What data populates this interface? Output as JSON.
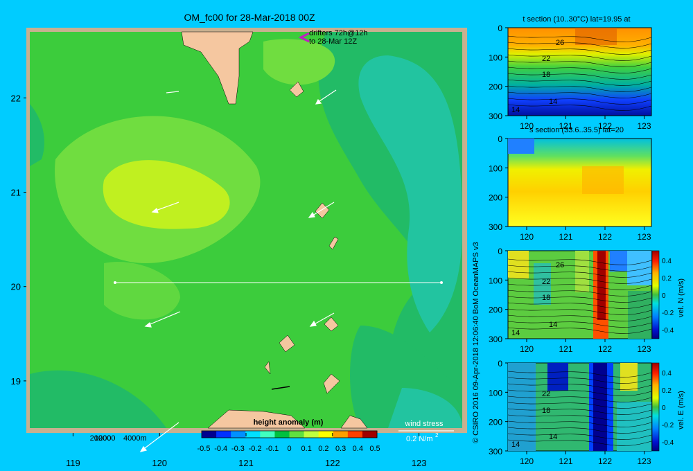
{
  "title": "OM_fc00 for 28-Mar-2018 00Z",
  "credit": "© CSIRO 2016   09-Apr-2018 12:06:40 BoM OceanMAPS v3",
  "map": {
    "drifters": [
      "drifters 72h@12h",
      "to 28-Mar 12Z"
    ],
    "depth_legend": [
      "200",
      "1000",
      "2000",
      "4000m"
    ],
    "wind_stress": {
      "label": "wind stress",
      "scale_label": "0.2 N/m",
      "scale_sup": "2"
    },
    "lat_ticks": [
      "22",
      "21",
      "20",
      "19"
    ],
    "lon_ticks": [
      "119",
      "120",
      "121",
      "122",
      "123"
    ],
    "colorbar": {
      "title": "height anomaly  (m)",
      "ticks": [
        "-0.5",
        "-0.4",
        "-0.3",
        "-0.2",
        "-0.1",
        "0",
        "0.1",
        "0.2",
        "0.3",
        "0.4",
        "0.5"
      ],
      "colors": [
        "#00008f",
        "#0030ff",
        "#0090ff",
        "#00e0ff",
        "#40ffbf",
        "#00c040",
        "#60e040",
        "#c0ff40",
        "#ffff00",
        "#ffa000",
        "#ff4000",
        "#a00000"
      ]
    }
  },
  "chart_data": [
    {
      "type": "heatmap",
      "title": "OM_fc00 for 28-Mar-2018 00Z",
      "variable": "height anomaly (m)",
      "xlim": [
        118.5,
        123.5
      ],
      "ylim": [
        18.5,
        22.7
      ],
      "x_ticks": [
        119,
        120,
        121,
        122,
        123
      ],
      "y_ticks": [
        19,
        20,
        21,
        22
      ],
      "section_line": {
        "lat": 20,
        "lon_range": [
          119.5,
          123.2
        ]
      },
      "colorbar_range": [
        -0.5,
        0.5
      ]
    },
    {
      "type": "heatmap",
      "title": "t section (10..30°C) lat=19.95 at",
      "x_ticks": [
        120,
        121,
        122,
        123
      ],
      "y_ticks": [
        0,
        100,
        200,
        300
      ],
      "contour_labels": [
        "26",
        "22",
        "18",
        "14",
        "14"
      ]
    },
    {
      "type": "heatmap",
      "title": "s section (33.6..35.5) lat=20",
      "x_ticks": [
        120,
        121,
        122,
        123
      ],
      "y_ticks": [
        0,
        100,
        200,
        300
      ]
    },
    {
      "type": "heatmap",
      "title": "",
      "colorbar_label": "vel. N (m/s)",
      "colorbar_ticks": [
        "0.4",
        "0.2",
        "0",
        "-0.2",
        "-0.4"
      ],
      "x_ticks": [
        120,
        121,
        122,
        123
      ],
      "y_ticks": [
        0,
        100,
        200,
        300
      ],
      "contour_labels": [
        "26",
        "22",
        "18",
        "14",
        "14"
      ]
    },
    {
      "type": "heatmap",
      "title": "",
      "colorbar_label": "vel. E (m/s)",
      "colorbar_ticks": [
        "0.4",
        "0.2",
        "0",
        "-0.2",
        "-0.4"
      ],
      "x_ticks": [
        120,
        121,
        122,
        123
      ],
      "y_ticks": [
        0,
        100,
        200,
        300
      ],
      "contour_labels": [
        "22",
        "18",
        "14",
        "14"
      ]
    }
  ]
}
